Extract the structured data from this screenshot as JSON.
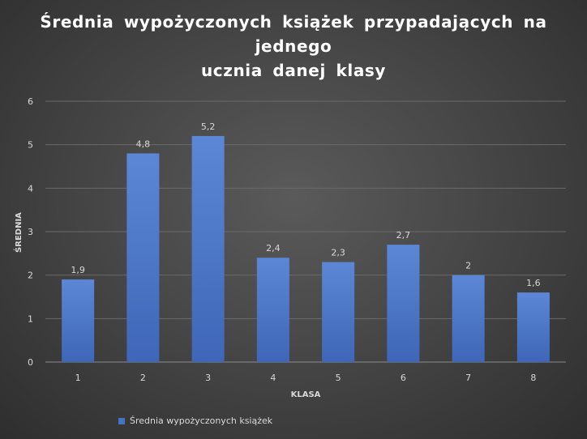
{
  "chart_data": {
    "type": "bar",
    "title": "Średnia wypożyczonych książek przypadających na jednego ucznia danej klasy",
    "title_lines": [
      "Średnia wypożyczonych książek przypadających na jednego",
      "ucznia danej klasy"
    ],
    "xlabel": "KLASA",
    "ylabel": "ŚREDNIA",
    "categories": [
      "1",
      "2",
      "3",
      "4",
      "5",
      "6",
      "7",
      "8"
    ],
    "series": [
      {
        "name": "Średnia wypożyczonych książek",
        "values": [
          1.9,
          4.8,
          5.2,
          2.4,
          2.3,
          2.7,
          2,
          1.6
        ],
        "labels": [
          "1,9",
          "4,8",
          "5,2",
          "2,4",
          "2,3",
          "2,7",
          "2",
          "1,6"
        ],
        "color": "#4472c4"
      }
    ],
    "ylim": [
      0,
      6
    ],
    "yticks": [
      0,
      1,
      2,
      3,
      4,
      5,
      6
    ],
    "grid": true,
    "legend_position": "bottom-left"
  },
  "colors": {
    "background": "#474747",
    "bar_top": "#5b87d6",
    "bar_bottom": "#3f66b8",
    "gridline": "#6a6a6a",
    "text": "#d9d9d9",
    "title": "#ffffff"
  }
}
